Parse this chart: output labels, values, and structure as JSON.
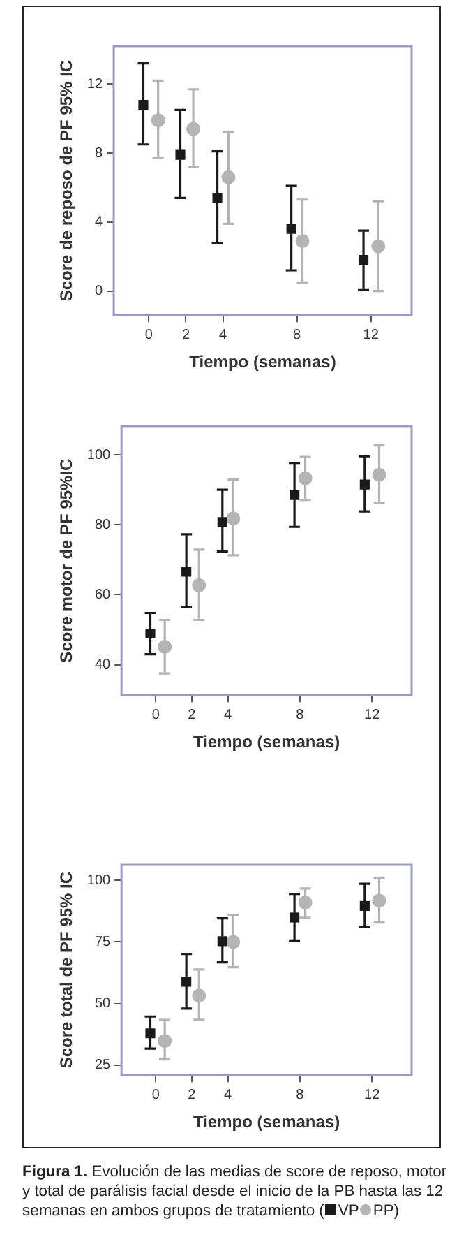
{
  "chart_data": [
    {
      "type": "scatter",
      "ylabel": "Score de reposo de PF 95% IC",
      "xlabel": "Tiempo (semanas)",
      "xlim": [
        -1.9,
        14.2
      ],
      "xticks": [
        0,
        2,
        4,
        8,
        12
      ],
      "ylim": [
        -1.4,
        14.2
      ],
      "yticks": [
        0,
        4,
        8,
        12
      ],
      "grid": false,
      "legend": false,
      "series": [
        {
          "color": "#1a1a1a",
          "marker": "square",
          "x": [
            -0.3,
            1.7,
            3.7,
            7.7,
            11.6
          ],
          "values": [
            10.8,
            7.9,
            5.4,
            3.6,
            1.8
          ],
          "errors": [
            [
              8.5,
              13.2
            ],
            [
              5.4,
              10.5
            ],
            [
              2.8,
              8.1
            ],
            [
              1.2,
              6.1
            ],
            [
              0.05,
              3.5
            ]
          ]
        },
        {
          "color": "#b4b4b4",
          "marker": "circle",
          "x": [
            0.5,
            2.4,
            4.3,
            8.3,
            12.4
          ],
          "values": [
            9.9,
            9.4,
            6.6,
            2.9,
            2.6
          ],
          "errors": [
            [
              7.7,
              12.2
            ],
            [
              7.2,
              11.7
            ],
            [
              3.9,
              9.2
            ],
            [
              0.5,
              5.3
            ],
            [
              0,
              5.2
            ]
          ]
        }
      ]
    },
    {
      "type": "scatter",
      "ylabel": "Score motor de PF 95%IC",
      "xlabel": "Tiempo (semanas)",
      "xlim": [
        -1.9,
        14.2
      ],
      "xticks": [
        0,
        2,
        4,
        8,
        12
      ],
      "ylim": [
        31.3,
        108.2
      ],
      "yticks": [
        40,
        60,
        80,
        100
      ],
      "grid": false,
      "legend": false,
      "series": [
        {
          "color": "#1a1a1a",
          "marker": "square",
          "x": [
            -0.3,
            1.7,
            3.7,
            7.7,
            11.6
          ],
          "values": [
            48.9,
            66.6,
            80.8,
            88.5,
            91.5
          ],
          "errors": [
            [
              43.0,
              54.8
            ],
            [
              56.5,
              77.3
            ],
            [
              72.4,
              90.0
            ],
            [
              79.4,
              97.7
            ],
            [
              83.8,
              99.6
            ]
          ]
        },
        {
          "color": "#b4b4b4",
          "marker": "circle",
          "x": [
            0.5,
            2.4,
            4.3,
            8.3,
            12.4
          ],
          "values": [
            45.1,
            62.7,
            81.8,
            93.3,
            94.3
          ],
          "errors": [
            [
              37.5,
              52.8
            ],
            [
              52.8,
              72.9
            ],
            [
              71.3,
              92.9
            ],
            [
              87.1,
              99.4
            ],
            [
              86.3,
              102.7
            ]
          ]
        }
      ]
    },
    {
      "type": "scatter",
      "ylabel": "Score total de PF 95% IC",
      "xlabel": "Tiempo (semanas)",
      "xlim": [
        -1.9,
        14.2
      ],
      "xticks": [
        0,
        2,
        4,
        8,
        12
      ],
      "ylim": [
        20.9,
        106.3
      ],
      "yticks": [
        25,
        50,
        75,
        100
      ],
      "grid": false,
      "legend": "bottom",
      "annotations": [
        "Figura 1. Evolución de las medias de score de reposo, motor y total de parálisis facial desde el inicio de la PB hasta las 12 semanas en ambos grupos de tratamiento (",
        ")"
      ],
      "series": [
        {
          "name": "VP",
          "color": "#1a1a1a",
          "marker": "square",
          "x": [
            -0.3,
            1.7,
            3.7,
            7.7,
            11.6
          ],
          "values": [
            37.9,
            58.8,
            75.3,
            84.9,
            89.6
          ],
          "errors": [
            [
              31.7,
              44.7
            ],
            [
              47.9,
              70.1
            ],
            [
              66.7,
              84.6
            ],
            [
              75.6,
              94.5
            ],
            [
              81.2,
              98.6
            ]
          ]
        },
        {
          "name": "PP",
          "color": "#b4b4b4",
          "marker": "circle",
          "x": [
            0.5,
            2.4,
            4.3,
            8.3,
            12.4
          ],
          "values": [
            34.8,
            53.2,
            75.0,
            91.0,
            91.8
          ],
          "errors": [
            [
              27.3,
              43.3
            ],
            [
              43.4,
              63.8
            ],
            [
              64.7,
              86.0
            ],
            [
              84.8,
              96.7
            ],
            [
              82.9,
              101.1
            ]
          ]
        }
      ]
    }
  ]
}
